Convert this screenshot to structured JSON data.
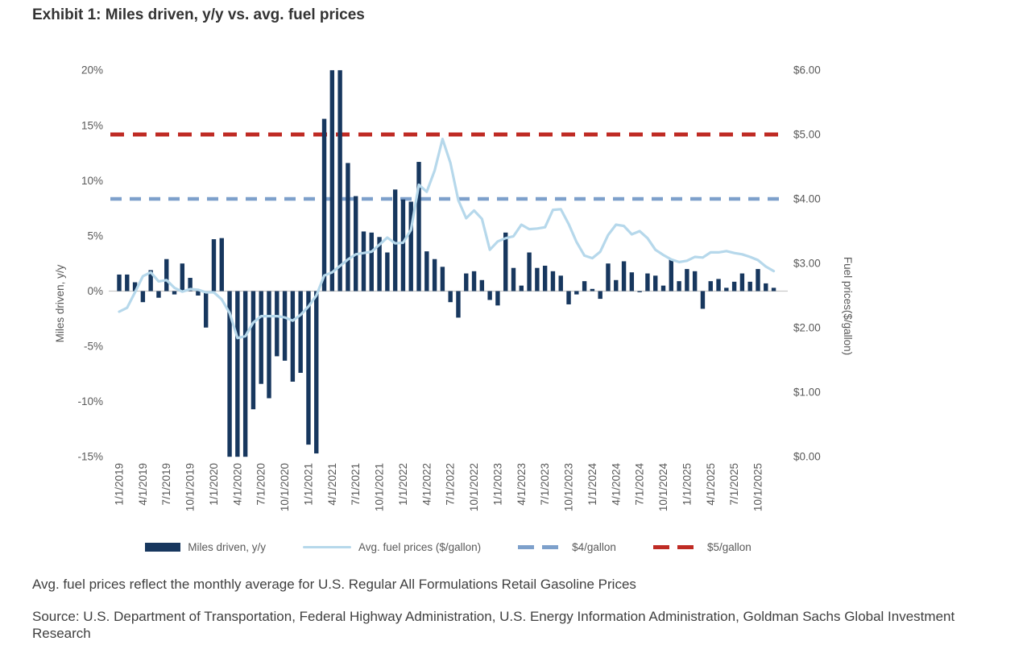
{
  "title": "Exhibit 1: Miles driven, y/y vs. avg. fuel prices",
  "note": "Avg. fuel prices reflect the monthly average for U.S. Regular All Formulations Retail Gasoline Prices",
  "source": "Source: U.S. Department of Transportation, Federal Highway Administration, U.S. Energy Information Administration, Goldman Sachs Global Investment Research",
  "colors": {
    "bar_navy": "#17375e",
    "fuel_line": "#b6d8eb",
    "dash_blue": "#7da0cb",
    "dash_red": "#bf2b24",
    "axis_text": "#595959",
    "axis_line": "#c9c9c9"
  },
  "chart_data": {
    "type": "bar",
    "title": "Exhibit 1: Miles driven, y/y vs. avg. fuel prices",
    "x_start": "1/1/2019",
    "x_end": "12/1/2025",
    "x_tick_labels": [
      "1/1/2019",
      "4/1/2019",
      "7/1/2019",
      "10/1/2019",
      "1/1/2020",
      "4/1/2020",
      "7/1/2020",
      "10/1/2020",
      "1/1/2021",
      "4/1/2021",
      "7/1/2021",
      "10/1/2021",
      "1/1/2022",
      "4/1/2022",
      "7/1/2022",
      "10/1/2022",
      "1/1/2023",
      "4/1/2023",
      "7/1/2023",
      "10/1/2023",
      "1/1/2024",
      "4/1/2024",
      "7/1/2024",
      "10/1/2024",
      "1/1/2025",
      "4/1/2025",
      "7/1/2025",
      "10/1/2025"
    ],
    "left_axis": {
      "label": "Miles driven, y/y",
      "tick_values": [
        20,
        15,
        10,
        5,
        0,
        -5,
        -10,
        -15
      ],
      "tick_labels": [
        "20%",
        "15%",
        "10%",
        "5%",
        "0%",
        "-5%",
        "-10%",
        "-15%"
      ],
      "min": -15,
      "max": 20,
      "grid": false
    },
    "right_axis": {
      "label": "Fuel prices($/gallon)",
      "tick_values": [
        6,
        5,
        4,
        3,
        2,
        1,
        0
      ],
      "tick_labels": [
        "$6.00",
        "$5.00",
        "$4.00",
        "$3.00",
        "$2.00",
        "$1.00",
        "$0.00"
      ],
      "min": 0,
      "max": 6
    },
    "series": [
      {
        "name": "Miles driven, y/y",
        "type": "bar",
        "unit": "%",
        "values": [
          1.5,
          1.5,
          0.8,
          -1.0,
          1.9,
          -0.6,
          2.9,
          -0.3,
          2.5,
          1.2,
          -0.4,
          -3.3,
          4.7,
          4.8,
          -15,
          -15,
          -15,
          -10.7,
          -8.4,
          -9.7,
          -5.9,
          -6.3,
          -8.2,
          -7.4,
          -13.9,
          -14.7,
          15.6,
          20,
          20,
          11.6,
          8.6,
          5.4,
          5.3,
          4.9,
          3.5,
          9.2,
          8.3,
          8.1,
          11.7,
          3.6,
          2.9,
          2.2,
          -1.0,
          -2.4,
          1.6,
          1.8,
          1.0,
          -0.8,
          -1.3,
          5.3,
          2.1,
          0.5,
          3.5,
          2.1,
          2.3,
          1.8,
          1.4,
          -1.2,
          -0.3,
          0.9,
          0.2,
          -0.7,
          2.5,
          1.0,
          2.7,
          1.7,
          -0.1,
          1.6,
          1.4,
          0.5,
          2.9,
          0.9,
          2.0,
          1.8,
          -1.6,
          0.9,
          1.1,
          0.3,
          0.85,
          1.6,
          0.85,
          2.0,
          0.7,
          0.3
        ]
      },
      {
        "name": "Avg. fuel prices ($/gallon)",
        "type": "line",
        "unit": "$",
        "values": [
          2.25,
          2.31,
          2.55,
          2.8,
          2.86,
          2.72,
          2.74,
          2.62,
          2.56,
          2.6,
          2.59,
          2.55,
          2.55,
          2.44,
          2.23,
          1.84,
          1.87,
          2.08,
          2.18,
          2.18,
          2.18,
          2.16,
          2.11,
          2.2,
          2.33,
          2.5,
          2.81,
          2.86,
          2.96,
          3.06,
          3.14,
          3.16,
          3.18,
          3.29,
          3.4,
          3.31,
          3.32,
          3.52,
          4.22,
          4.11,
          4.44,
          4.93,
          4.56,
          3.98,
          3.7,
          3.82,
          3.69,
          3.21,
          3.34,
          3.39,
          3.42,
          3.6,
          3.53,
          3.54,
          3.56,
          3.83,
          3.84,
          3.61,
          3.33,
          3.12,
          3.08,
          3.18,
          3.44,
          3.6,
          3.58,
          3.45,
          3.5,
          3.39,
          3.21,
          3.13,
          3.06,
          3.02,
          3.04,
          3.1,
          3.09,
          3.17,
          3.17,
          3.19,
          3.16,
          3.14,
          3.1,
          3.05,
          2.95,
          2.88
        ]
      },
      {
        "name": "$4/gallon",
        "type": "dashed-line",
        "unit": "$",
        "value": 4
      },
      {
        "name": "$5/gallon",
        "type": "dashed-line",
        "unit": "$",
        "value": 5
      }
    ],
    "legend": [
      {
        "label": "Miles driven, y/y",
        "swatch": "bar",
        "color_key": "bar_navy"
      },
      {
        "label": "Avg. fuel prices ($/gallon)",
        "swatch": "line",
        "color_key": "fuel_line"
      },
      {
        "label": "$4/gallon",
        "swatch": "dash",
        "color_key": "dash_blue"
      },
      {
        "label": "$5/gallon",
        "swatch": "dash",
        "color_key": "dash_red"
      }
    ],
    "legend_position": "bottom"
  }
}
